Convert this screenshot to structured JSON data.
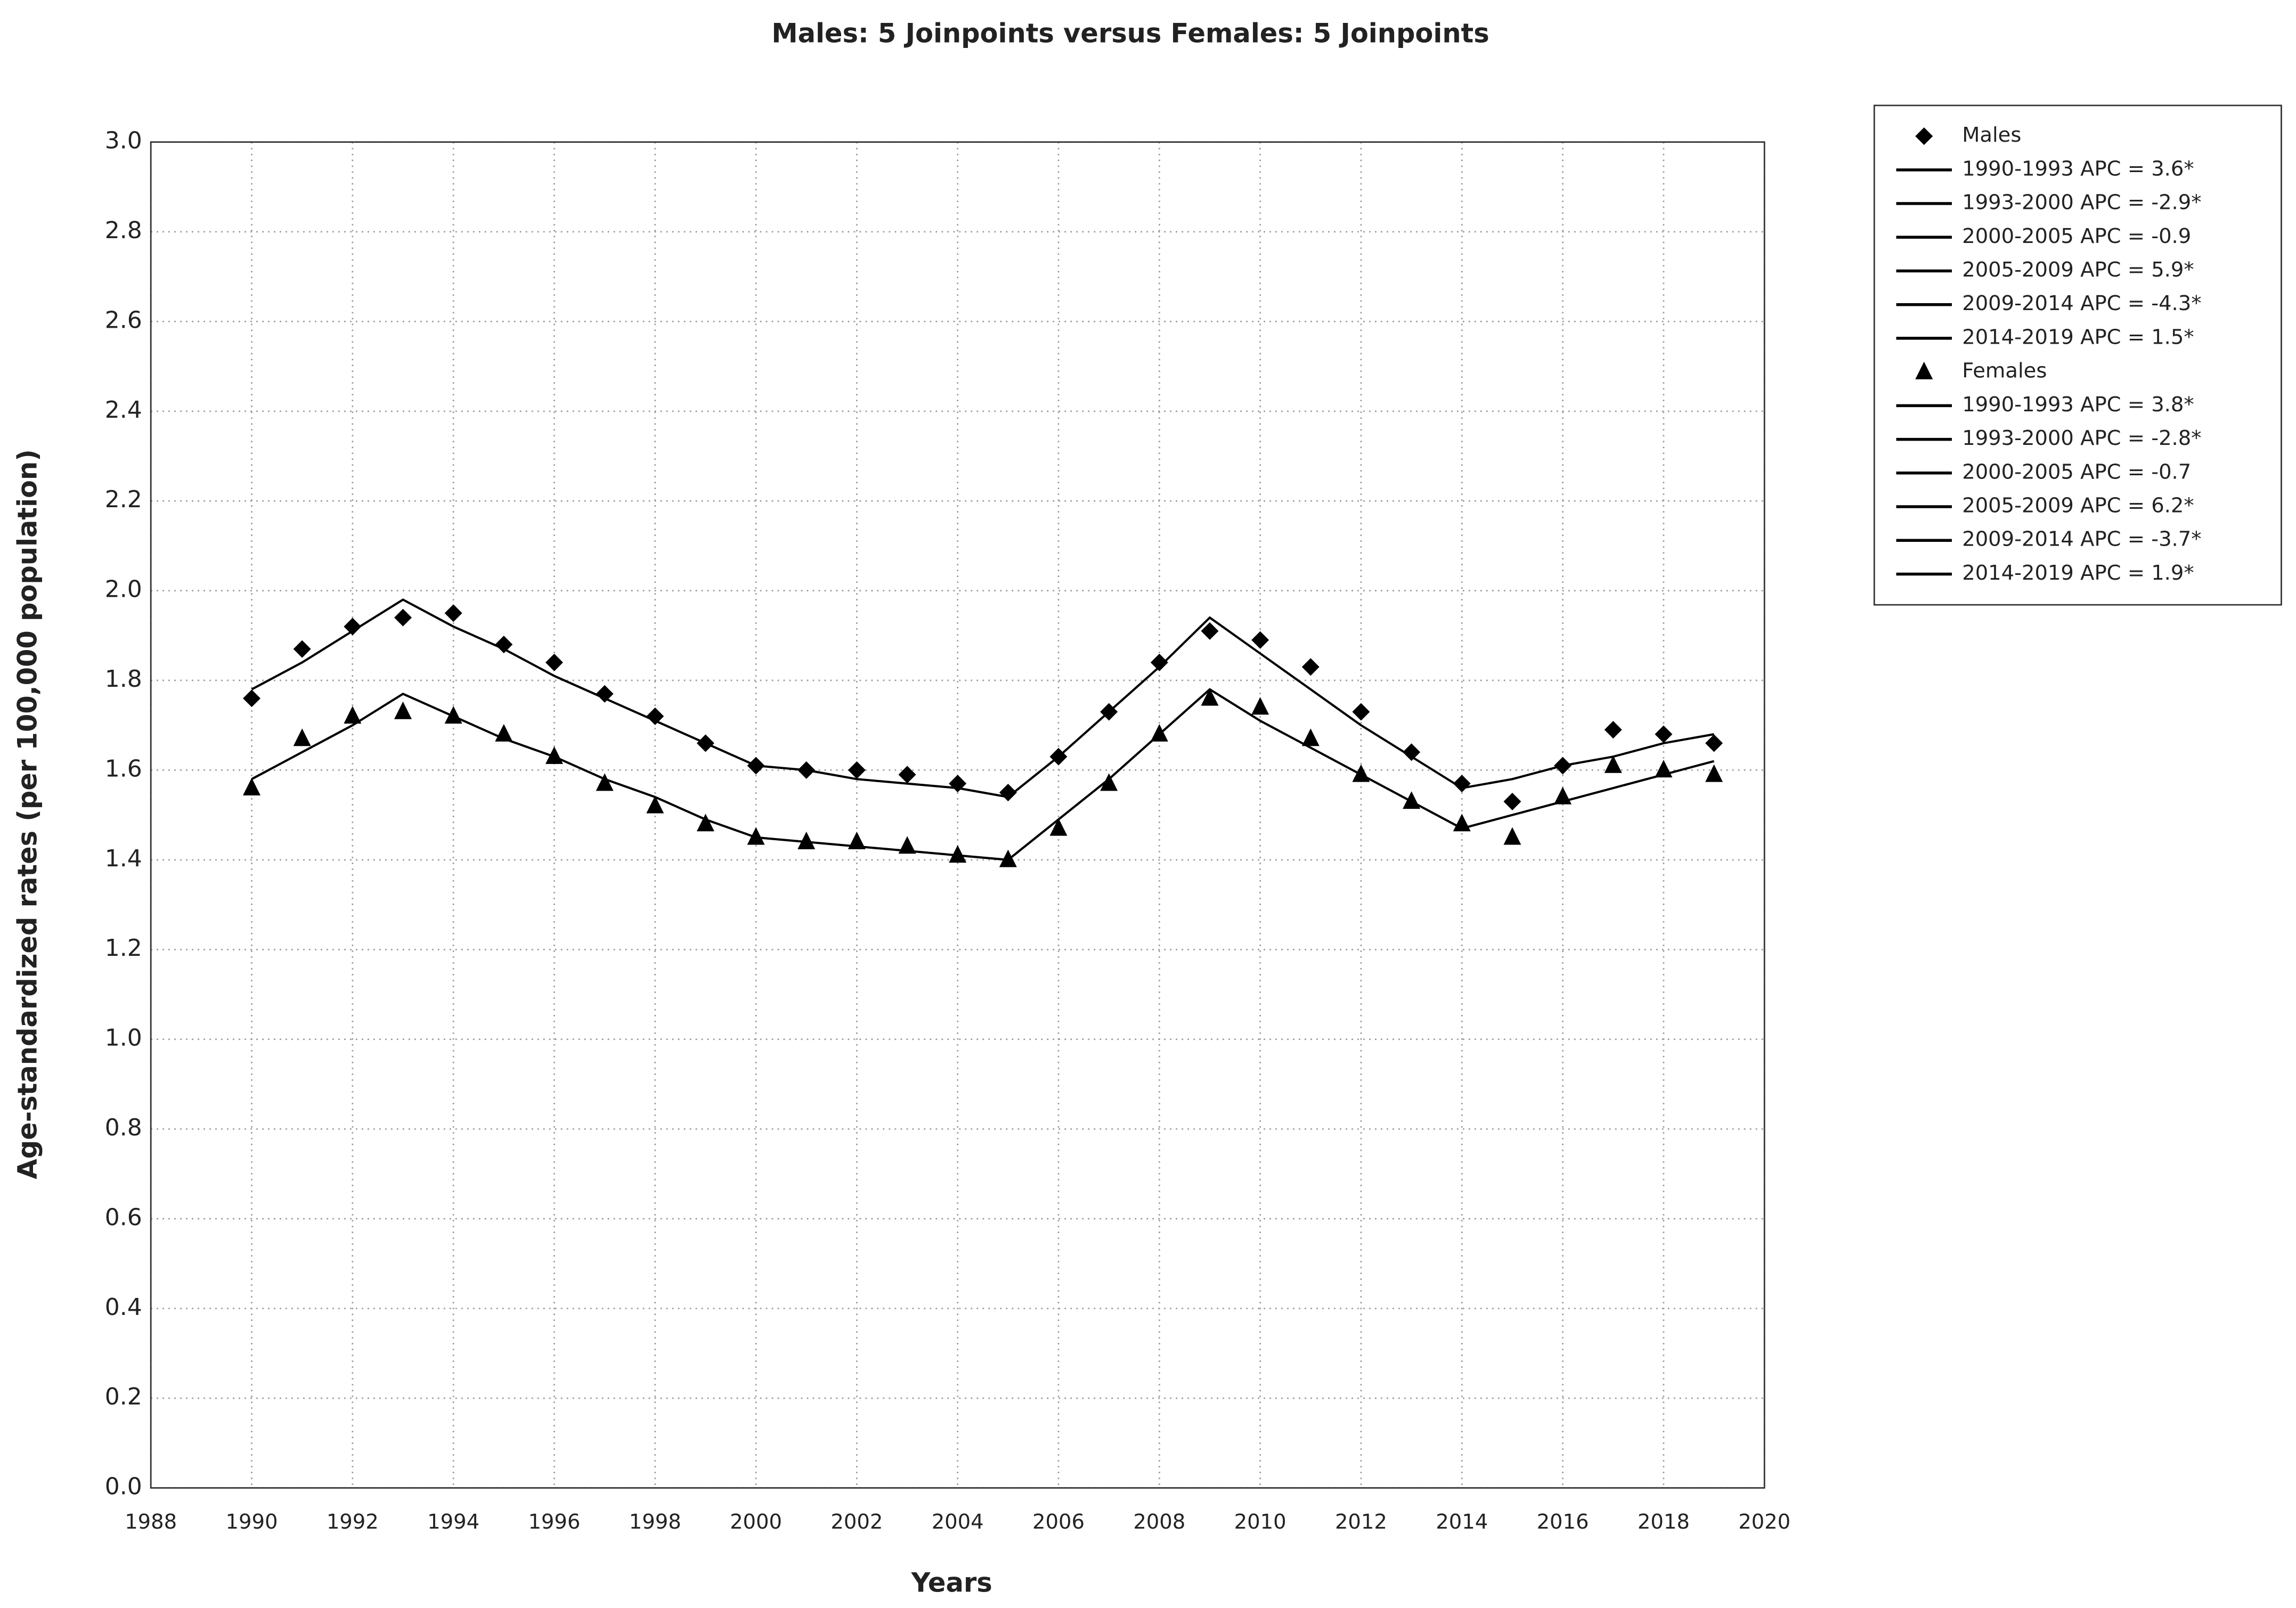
{
  "chart_data": {
    "type": "joinpoint",
    "title": "Males: 5 Joinpoints  versus  Females: 5 Joinpoints",
    "x_label": "Years",
    "y_label": "Age-standardized rates (per 100,000 population)",
    "x": [
      1990,
      1991,
      1992,
      1993,
      1994,
      1995,
      1996,
      1997,
      1998,
      1999,
      2000,
      2001,
      2002,
      2003,
      2004,
      2005,
      2006,
      2007,
      2008,
      2009,
      2010,
      2011,
      2012,
      2013,
      2014,
      2015,
      2016,
      2017,
      2018,
      2019
    ],
    "series": [
      {
        "name": "Males",
        "marker": "diamond",
        "color": "#000000",
        "values": [
          1.76,
          1.87,
          1.92,
          1.94,
          1.95,
          1.88,
          1.84,
          1.77,
          1.72,
          1.66,
          1.61,
          1.6,
          1.6,
          1.59,
          1.57,
          1.55,
          1.63,
          1.73,
          1.84,
          1.91,
          1.89,
          1.83,
          1.73,
          1.64,
          1.57,
          1.53,
          1.61,
          1.69,
          1.68,
          1.66
        ],
        "fitted": [
          1.78,
          1.84,
          1.91,
          1.98,
          1.92,
          1.87,
          1.81,
          1.76,
          1.71,
          1.66,
          1.61,
          1.6,
          1.58,
          1.57,
          1.56,
          1.54,
          1.63,
          1.73,
          1.83,
          1.94,
          1.86,
          1.78,
          1.7,
          1.63,
          1.56,
          1.58,
          1.61,
          1.63,
          1.66,
          1.68
        ],
        "segments": [
          "1990-1993 APC =  3.6*",
          "1993-2000 APC = -2.9*",
          "2000-2005 APC = -0.9",
          "2005-2009 APC =  5.9*",
          "2009-2014 APC = -4.3*",
          "2014-2019 APC =  1.5*"
        ]
      },
      {
        "name": "Females",
        "marker": "triangle",
        "color": "#000000",
        "values": [
          1.56,
          1.67,
          1.72,
          1.73,
          1.72,
          1.68,
          1.63,
          1.57,
          1.52,
          1.48,
          1.45,
          1.44,
          1.44,
          1.43,
          1.41,
          1.4,
          1.47,
          1.57,
          1.68,
          1.76,
          1.74,
          1.67,
          1.59,
          1.53,
          1.48,
          1.45,
          1.54,
          1.61,
          1.6,
          1.59
        ],
        "fitted": [
          1.58,
          1.64,
          1.7,
          1.77,
          1.72,
          1.67,
          1.63,
          1.58,
          1.54,
          1.49,
          1.45,
          1.44,
          1.43,
          1.42,
          1.41,
          1.4,
          1.49,
          1.58,
          1.68,
          1.78,
          1.71,
          1.65,
          1.59,
          1.53,
          1.47,
          1.5,
          1.53,
          1.56,
          1.59,
          1.62
        ],
        "segments": [
          "1990-1993 APC =  3.8*",
          "1993-2000 APC = -2.8*",
          "2000-2005 APC = -0.7",
          "2005-2009 APC =  6.2*",
          "2009-2014 APC = -3.7*",
          "2014-2019 APC =  1.9*"
        ]
      }
    ],
    "xlim": [
      1988,
      2020
    ],
    "xticks": [
      1988,
      1990,
      1992,
      1994,
      1996,
      1998,
      2000,
      2002,
      2004,
      2006,
      2008,
      2010,
      2012,
      2014,
      2016,
      2018,
      2020
    ],
    "ylim": [
      0,
      3
    ],
    "yticks": [
      {
        "value": 0,
        "label": "0.0"
      },
      0.2,
      0.4,
      0.6,
      0.8,
      {
        "value": 1,
        "label": "1.0"
      },
      1.2,
      1.4,
      1.6,
      1.8,
      {
        "value": 2,
        "label": "2.0"
      },
      2.2,
      2.4,
      2.6,
      2.8,
      {
        "value": 3,
        "label": "3.0"
      }
    ],
    "grid": true,
    "legend": "outside-right"
  }
}
